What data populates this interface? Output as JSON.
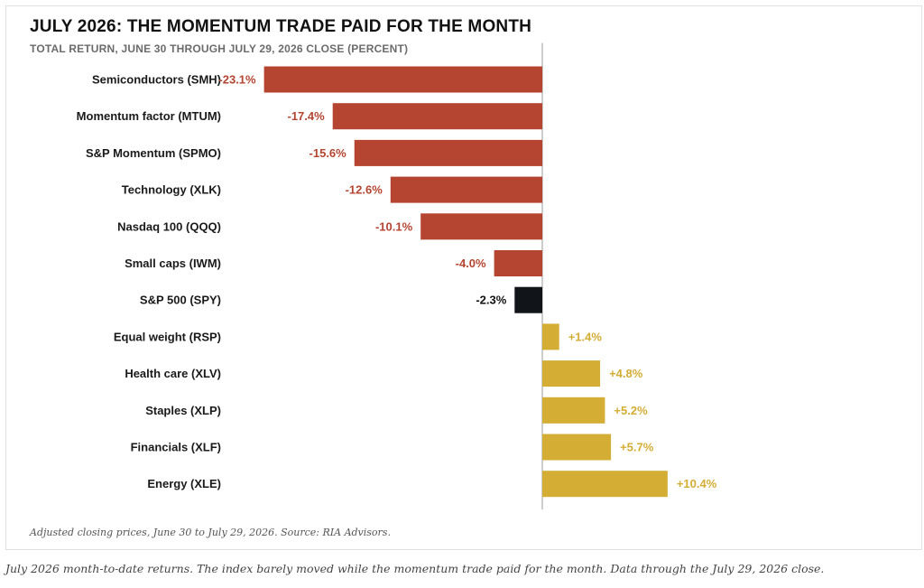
{
  "chart_data": {
    "type": "bar",
    "orientation": "horizontal",
    "title": "JULY 2026: THE MOMENTUM TRADE PAID FOR THE MONTH",
    "subtitle": "TOTAL RETURN, JUNE 30 THROUGH JULY 29, 2026 CLOSE (PERCENT)",
    "xlabel": "",
    "ylabel": "",
    "xlim": [
      -23.1,
      10.4
    ],
    "grid": false,
    "legend": "none",
    "categories": [
      "Semiconductors (SMH)",
      "Momentum factor (MTUM)",
      "S&P Momentum (SPMO)",
      "Technology (XLK)",
      "Nasdaq 100 (QQQ)",
      "Small caps (IWM)",
      "S&P 500 (SPY)",
      "Equal weight (RSP)",
      "Health care (XLV)",
      "Staples (XLP)",
      "Financials (XLF)",
      "Energy (XLE)"
    ],
    "values": [
      -23.1,
      -17.4,
      -15.6,
      -12.6,
      -10.1,
      -4.0,
      -2.3,
      1.4,
      4.8,
      5.2,
      5.7,
      10.4
    ],
    "value_labels": [
      "-23.1%",
      "-17.4%",
      "-15.6%",
      "-12.6%",
      "-10.1%",
      "-4.0%",
      "-2.3%",
      "+1.4%",
      "+4.8%",
      "+5.2%",
      "+5.7%",
      "+10.4%"
    ],
    "colors": {
      "negative": "#b54430",
      "benchmark": "#111418",
      "positive": "#d4ad35",
      "benchmark_label": "#111111",
      "zero_line": "#9a9a9a"
    },
    "highlight_index": 6
  },
  "footer": {
    "source_note": "Adjusted closing prices, June 30 to July 29, 2026. Source: RIA Advisors.",
    "caption": "July 2026 month-to-date returns. The index barely moved while the momentum trade paid for the month. Data through the July 29, 2026 close."
  }
}
